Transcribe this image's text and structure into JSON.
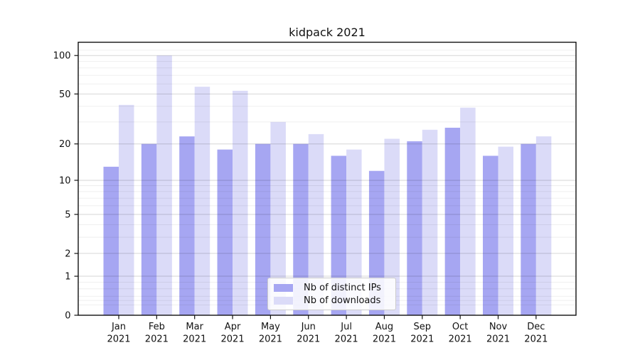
{
  "page": {
    "background": "#ffffff",
    "axis_color": "#111111"
  },
  "chart_data": {
    "type": "bar",
    "title": "kidpack 2021",
    "categories": [
      "Jan 2021",
      "Feb 2021",
      "Mar 2021",
      "Apr 2021",
      "May 2021",
      "Jun 2021",
      "Jul 2021",
      "Aug 2021",
      "Sep 2021",
      "Oct 2021",
      "Nov 2021",
      "Dec 2021"
    ],
    "x_tick_months": [
      "Jan",
      "Feb",
      "Mar",
      "Apr",
      "May",
      "Jun",
      "Jul",
      "Aug",
      "Sep",
      "Oct",
      "Nov",
      "Dec"
    ],
    "x_tick_year": "2021",
    "series": [
      {
        "name": "Nb of distinct IPs",
        "color": "#a6a6f2",
        "values": [
          13,
          20,
          23,
          18,
          20,
          20,
          16,
          12,
          21,
          27,
          16,
          20
        ]
      },
      {
        "name": "Nb of downloads",
        "color": "#dbdbf8",
        "values": [
          41,
          100,
          57,
          53,
          30,
          24,
          18,
          22,
          26,
          39,
          19,
          23
        ]
      }
    ],
    "yscale": "symlog (position proportional to log10(1+y))",
    "yticks": [
      0,
      1,
      2,
      5,
      10,
      20,
      50,
      100
    ],
    "ytick_labels": [
      "0",
      "1",
      "2",
      "5",
      "10",
      "20",
      "50",
      "100"
    ],
    "minor_gridlines": [
      0.2,
      0.3,
      0.4,
      0.6,
      0.8,
      3,
      4,
      6,
      7,
      8,
      9,
      30,
      40,
      60,
      70,
      80,
      90,
      110
    ],
    "ylim": [
      0,
      127
    ],
    "grid": true,
    "legend_position": "lower center",
    "legend_labels": [
      "Nb of distinct IPs",
      "Nb of downloads"
    ]
  }
}
